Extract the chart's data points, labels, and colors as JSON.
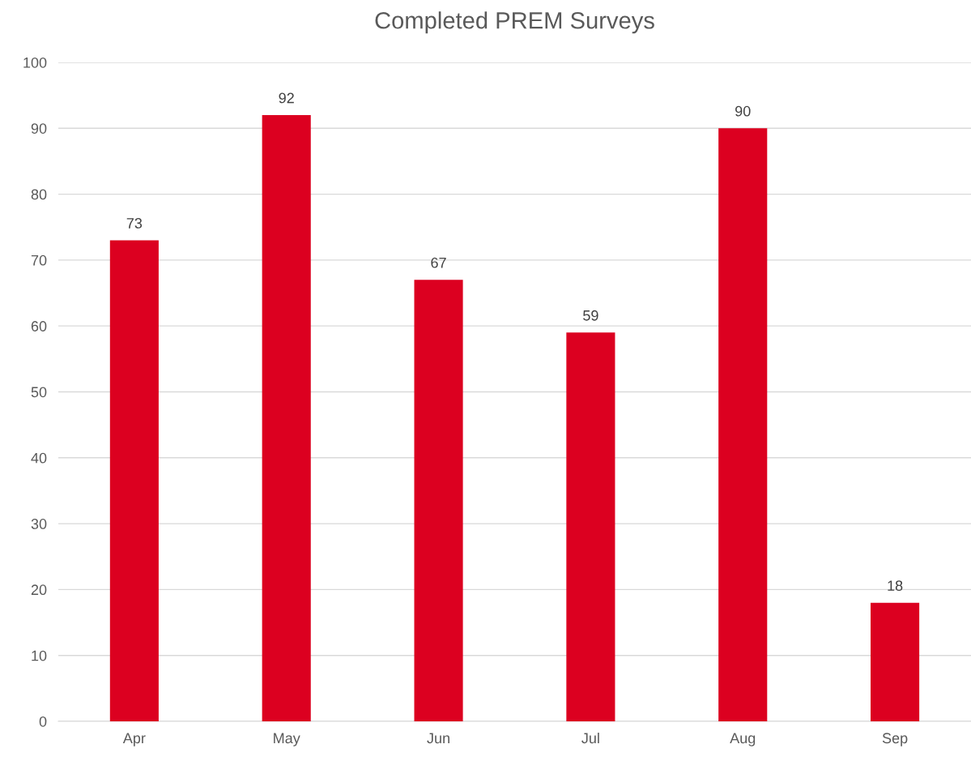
{
  "chart_data": {
    "type": "bar",
    "title": "Completed PREM Surveys",
    "categories": [
      "Apr",
      "May",
      "Jun",
      "Jul",
      "Aug",
      "Sep"
    ],
    "values": [
      73,
      92,
      67,
      59,
      90,
      18
    ],
    "color": "#dc0020",
    "ylim": [
      0,
      100
    ],
    "yticks": [
      0,
      10,
      20,
      30,
      40,
      50,
      60,
      70,
      80,
      90,
      100
    ],
    "grid": "y",
    "data_labels": true
  }
}
